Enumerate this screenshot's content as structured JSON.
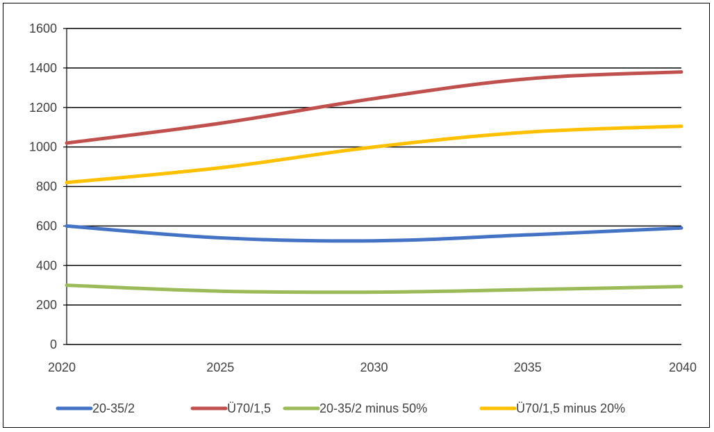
{
  "chart_data": {
    "type": "line",
    "title": "",
    "xlabel": "",
    "ylabel": "",
    "x": [
      2020,
      2025,
      2030,
      2035,
      2040
    ],
    "xlim": [
      2020,
      2040
    ],
    "ylim": [
      0,
      1600
    ],
    "yticks": [
      0,
      200,
      400,
      600,
      800,
      1000,
      1200,
      1400,
      1600
    ],
    "grid": true,
    "legend_position": "bottom",
    "series": [
      {
        "name": "20-35/2",
        "color": "#4472c4",
        "values": [
          600,
          540,
          525,
          555,
          590
        ]
      },
      {
        "name": "Ü70/1,5",
        "color": "#c0504d",
        "values": [
          1020,
          1120,
          1245,
          1345,
          1380
        ]
      },
      {
        "name": "20-35/2 minus 50%",
        "color": "#9bbb59",
        "values": [
          300,
          270,
          265,
          278,
          293
        ]
      },
      {
        "name": "Ü70/1,5 minus 20%",
        "color": "#ffc000",
        "values": [
          820,
          895,
          1000,
          1075,
          1105
        ]
      }
    ]
  }
}
